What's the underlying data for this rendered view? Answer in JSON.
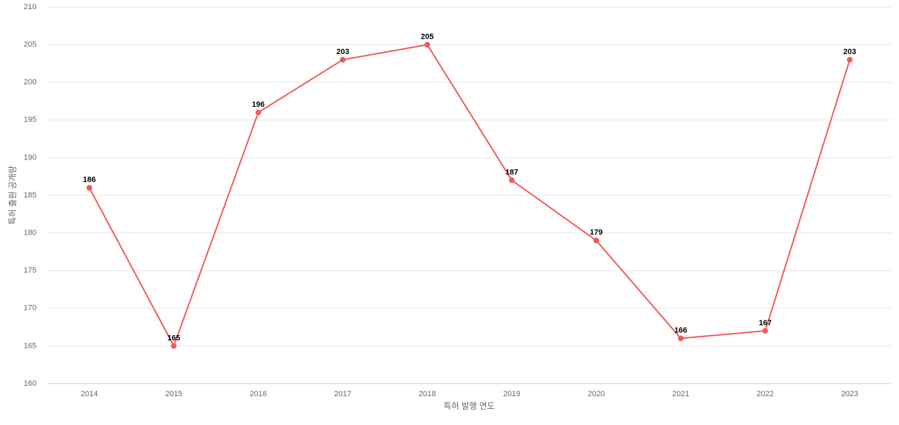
{
  "chart_data": {
    "type": "line",
    "x_label": "특허 발행 연도",
    "y_label": "특허 출원 공개량",
    "categories": [
      "2014",
      "2015",
      "2016",
      "2017",
      "2018",
      "2019",
      "2020",
      "2021",
      "2022",
      "2023"
    ],
    "series": [
      {
        "name": "특허 출원 공개량",
        "color": "#ef5a5a",
        "values": [
          186,
          165,
          196,
          203,
          205,
          187,
          179,
          166,
          167,
          203
        ]
      }
    ],
    "ylim": [
      160,
      210
    ],
    "yticks": [
      160,
      165,
      170,
      175,
      180,
      185,
      190,
      195,
      200,
      205,
      210
    ],
    "grid": true
  }
}
